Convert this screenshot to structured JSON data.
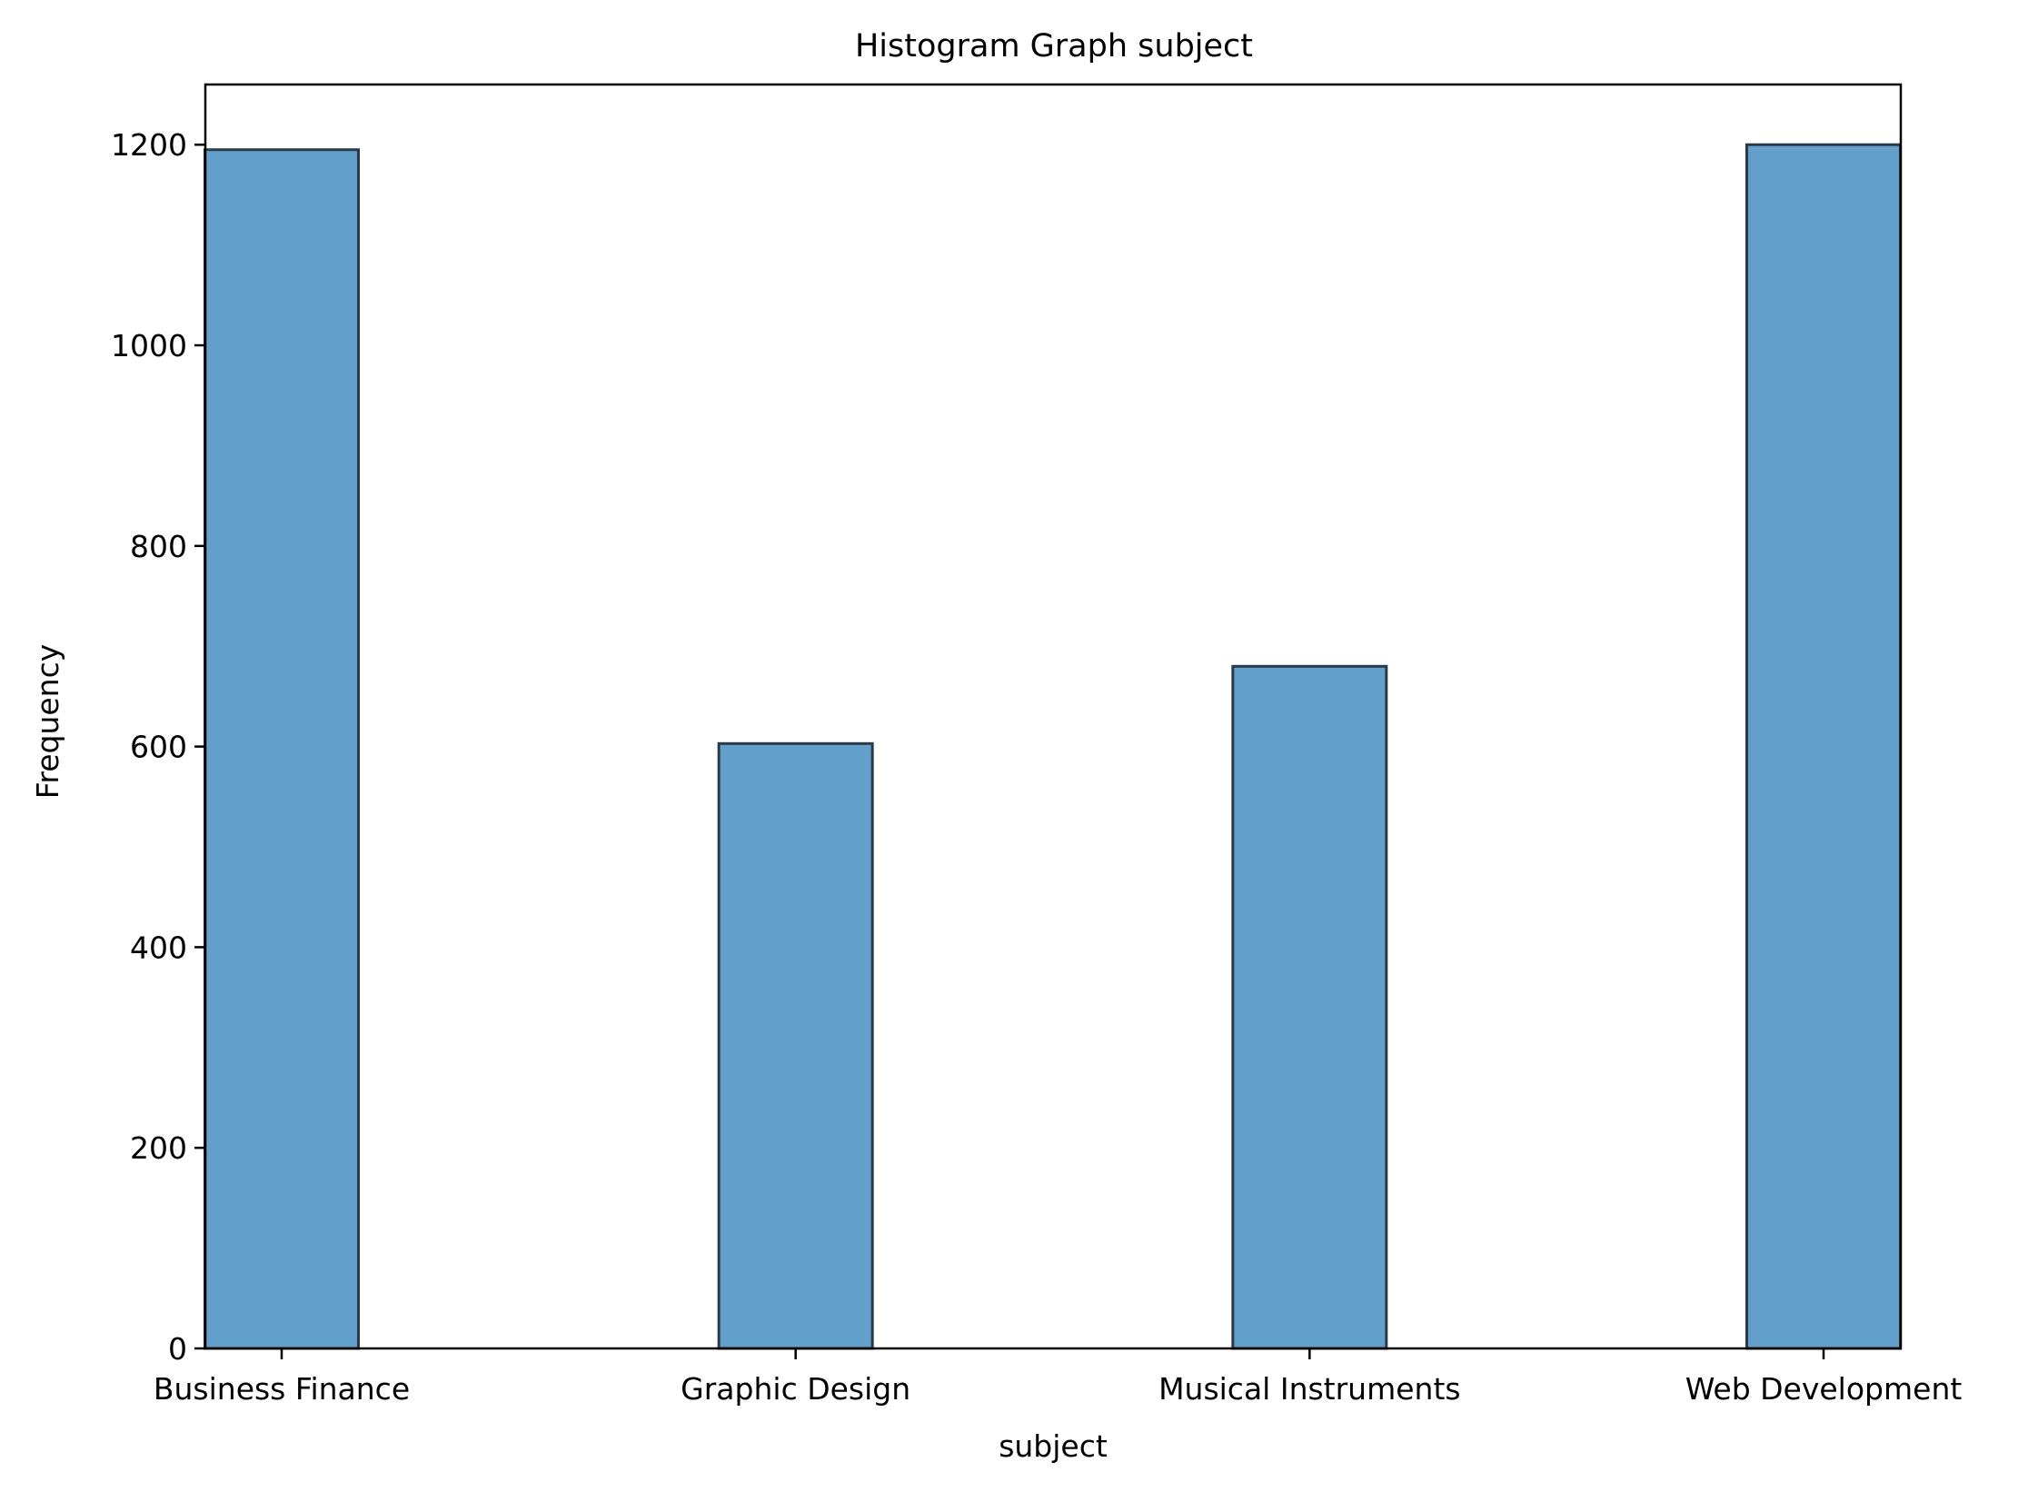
{
  "chart_data": {
    "type": "bar",
    "title": "Histogram Graph subject",
    "xlabel": "subject",
    "ylabel": "Frequency",
    "categories": [
      "Business Finance",
      "Graphic Design",
      "Musical Instruments",
      "Web Development"
    ],
    "values": [
      1195,
      603,
      680,
      1200
    ],
    "ylim": [
      0,
      1260
    ],
    "yticks": [
      0,
      200,
      400,
      600,
      800,
      1000,
      1200
    ],
    "ytick_labels": [
      "0",
      "200",
      "400",
      "600",
      "800",
      "1000",
      "1200"
    ],
    "grid": false,
    "legend": "none",
    "colors": {
      "bar_fill": "#639fcb",
      "bar_edge": "#2b3a47",
      "axis": "#000000",
      "background": "#ffffff"
    }
  }
}
